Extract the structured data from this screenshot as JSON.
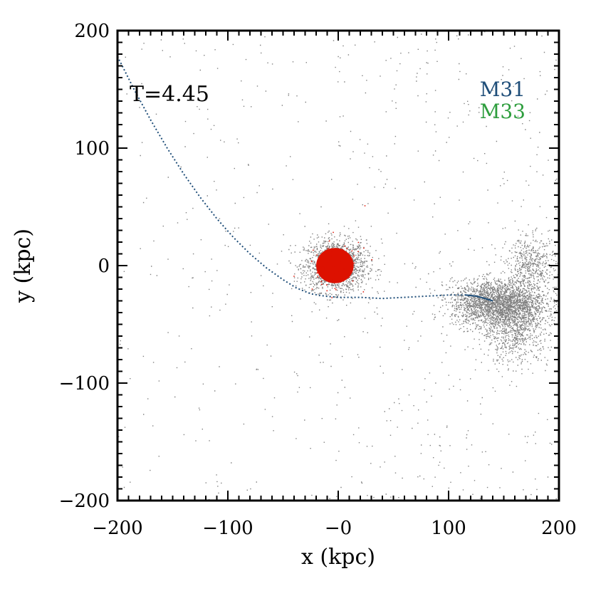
{
  "chart_data": {
    "type": "scatter",
    "xlabel": "x (kpc)",
    "ylabel": "y (kpc)",
    "xlim": [
      -200,
      200
    ],
    "ylim": [
      -200,
      200
    ],
    "x_ticks": [
      -200,
      -100,
      0,
      100,
      200
    ],
    "y_ticks": [
      -200,
      -100,
      0,
      100,
      200
    ],
    "x_tick_labels": [
      "−200",
      "−100",
      "−0",
      "100",
      "200"
    ],
    "y_tick_labels": [
      "−200",
      "−100",
      "0",
      "100",
      "200"
    ],
    "time_label": "T=4.45",
    "legend": [
      {
        "name": "M31",
        "color": "#1f4e79"
      },
      {
        "name": "M33",
        "color": "#2e9e3e"
      }
    ],
    "particle_color": "#808080",
    "core_color": "#dd1100",
    "orbit_color": "#1f4e79",
    "orbit": [
      [
        -200,
        178
      ],
      [
        -185,
        150
      ],
      [
        -170,
        124
      ],
      [
        -155,
        100
      ],
      [
        -140,
        78
      ],
      [
        -125,
        58
      ],
      [
        -110,
        40
      ],
      [
        -95,
        24
      ],
      [
        -80,
        10
      ],
      [
        -65,
        -2
      ],
      [
        -50,
        -12
      ],
      [
        -38,
        -19
      ],
      [
        -25,
        -24
      ],
      [
        -12,
        -26
      ],
      [
        0,
        -27
      ],
      [
        20,
        -27
      ],
      [
        40,
        -28
      ],
      [
        60,
        -27
      ],
      [
        80,
        -26
      ],
      [
        100,
        -25
      ],
      [
        115,
        -25
      ],
      [
        125,
        -26
      ],
      [
        133,
        -28
      ],
      [
        140,
        -30
      ]
    ],
    "clusters": [
      {
        "name": "central galaxy halo",
        "cx": -3,
        "cy": 0,
        "rx": 28,
        "ry": 22,
        "count": 1600
      },
      {
        "name": "M31 body",
        "cx": 145,
        "cy": -32,
        "rx": 42,
        "ry": 20,
        "count": 2400
      },
      {
        "name": "M31 tidal tail",
        "cx": 160,
        "cy": -55,
        "rx": 30,
        "ry": 28,
        "count": 700
      },
      {
        "name": "M31 upper tail",
        "cx": 175,
        "cy": 0,
        "rx": 22,
        "ry": 25,
        "count": 500
      }
    ],
    "core": {
      "name": "M33 core",
      "cx": -3,
      "cy": 0,
      "rx": 17,
      "ry": 15
    },
    "background_count": 900
  }
}
